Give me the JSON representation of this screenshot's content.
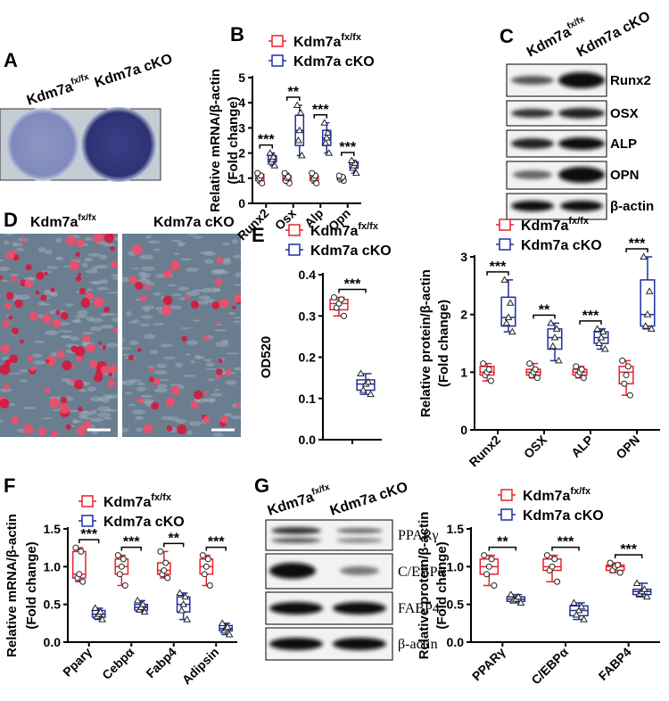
{
  "panels": {
    "A": {
      "label": "A",
      "columns": [
        {
          "name": "Kdm7a",
          "superscript": "fx/fx"
        },
        {
          "name": "Kdm7a cKO"
        }
      ]
    },
    "C": {
      "label": "C",
      "columns": [
        {
          "name": "Kdm7a",
          "superscript": "fx/fx"
        },
        {
          "name": "Kdm7a cKO"
        }
      ],
      "rows": [
        "Runx2",
        "OSX",
        "ALP",
        "OPN",
        "β-actin"
      ]
    },
    "D": {
      "label": "D",
      "columns": [
        {
          "name": "Kdm7a",
          "superscript": "fx/fx"
        },
        {
          "name": "Kdm7a cKO"
        }
      ]
    },
    "G": {
      "label": "G",
      "columns": [
        {
          "name": "Kdm7a",
          "superscript": "fx/fx"
        },
        {
          "name": "Kdm7a cKO"
        }
      ],
      "rows": [
        "PPARγ",
        "C/EBPα",
        "FABP4",
        "β-actin"
      ]
    }
  },
  "chart_data": [
    {
      "type": "box",
      "label": "B",
      "ylabel": [
        "Relative mRNA/β-actin",
        "(Fold change)"
      ],
      "categories": [
        "Runx2",
        "Osx",
        "Alp",
        "Opn"
      ],
      "ylim": [
        0,
        5
      ],
      "yticks": [
        0,
        1,
        2,
        3,
        4,
        5
      ],
      "significance": [
        "***",
        "**",
        "***",
        "***"
      ],
      "series": [
        {
          "name": "Kdm7a",
          "name_superscript": "fx/fx",
          "color": "#e8212b",
          "marker": "circle",
          "min": [
            0.8,
            0.8,
            0.8,
            0.9
          ],
          "q1": [
            0.9,
            0.9,
            0.9,
            0.95
          ],
          "median": [
            1.0,
            1.0,
            1.0,
            1.0
          ],
          "q3": [
            1.15,
            1.1,
            1.1,
            1.05
          ],
          "max": [
            1.2,
            1.2,
            1.2,
            1.1
          ],
          "points": [
            [
              0.8,
              0.95,
              1.0,
              1.1,
              1.2
            ],
            [
              0.8,
              0.9,
              1.0,
              1.05,
              1.2
            ],
            [
              0.8,
              0.95,
              1.0,
              1.1,
              1.2
            ],
            [
              0.9,
              0.95,
              1.0,
              1.05,
              1.1
            ]
          ]
        },
        {
          "name": "Kdm7a cKO",
          "color": "#1f2fa0",
          "marker": "triangle",
          "min": [
            1.5,
            1.9,
            2.0,
            1.2
          ],
          "q1": [
            1.65,
            2.3,
            2.3,
            1.4
          ],
          "median": [
            1.75,
            2.9,
            2.6,
            1.55
          ],
          "q3": [
            1.9,
            3.5,
            2.9,
            1.65
          ],
          "max": [
            2.0,
            3.9,
            3.2,
            1.7
          ],
          "points": [
            [
              1.5,
              1.65,
              1.75,
              1.85,
              2.0
            ],
            [
              1.9,
              2.5,
              2.9,
              3.6,
              3.9
            ],
            [
              2.0,
              2.4,
              2.6,
              2.8,
              3.2
            ],
            [
              1.2,
              1.4,
              1.5,
              1.6,
              1.7
            ]
          ]
        }
      ]
    },
    {
      "type": "box",
      "label": "E",
      "ylabel": [
        "OD520"
      ],
      "categories": [
        null
      ],
      "ylim": [
        0,
        0.4
      ],
      "yticks": [
        {
          "value": 0,
          "label": "0.0"
        },
        0.1,
        0.2,
        0.3,
        0.4
      ],
      "significance": [
        "***"
      ],
      "series": [
        {
          "name": "Kdm7a",
          "name_superscript": "fx/fx",
          "color": "#e8212b",
          "marker": "circle",
          "min": [
            0.3
          ],
          "q1": [
            0.315
          ],
          "median": [
            0.33
          ],
          "q3": [
            0.34
          ],
          "max": [
            0.345
          ],
          "points": [
            [
              0.3,
              0.32,
              0.33,
              0.34,
              0.345
            ]
          ]
        },
        {
          "name": "Kdm7a cKO",
          "color": "#1f2fa0",
          "marker": "triangle",
          "min": [
            0.11
          ],
          "q1": [
            0.12
          ],
          "median": [
            0.135
          ],
          "q3": [
            0.145
          ],
          "max": [
            0.16
          ],
          "points": [
            [
              0.11,
              0.12,
              0.135,
              0.14,
              0.16
            ]
          ]
        }
      ]
    },
    {
      "type": "box",
      "ylabel": [
        "Relative protein/β-actin",
        "(Fold change)"
      ],
      "categories": [
        "Runx2",
        "OSX",
        "ALP",
        "OPN"
      ],
      "ylim": [
        0,
        3
      ],
      "yticks": [
        0,
        1,
        2,
        3
      ],
      "significance": [
        "***",
        "**",
        "***",
        "***"
      ],
      "series": [
        {
          "name": "Kdm7a",
          "name_superscript": "fx/fx",
          "color": "#e8212b",
          "marker": "circle",
          "min": [
            0.85,
            0.9,
            0.9,
            0.6
          ],
          "q1": [
            0.95,
            0.95,
            0.95,
            0.8
          ],
          "median": [
            1.0,
            1.0,
            1.0,
            1.0
          ],
          "q3": [
            1.1,
            1.05,
            1.05,
            1.1
          ],
          "max": [
            1.15,
            1.15,
            1.1,
            1.2
          ],
          "points": [
            [
              0.85,
              0.95,
              1.0,
              1.05,
              1.15
            ],
            [
              0.9,
              0.95,
              1.0,
              1.05,
              1.15
            ],
            [
              0.9,
              0.95,
              1.0,
              1.05,
              1.1
            ],
            [
              0.6,
              0.8,
              0.95,
              1.1,
              1.2
            ]
          ]
        },
        {
          "name": "Kdm7a cKO",
          "color": "#1f2fa0",
          "marker": "triangle",
          "min": [
            1.7,
            1.2,
            1.4,
            1.75
          ],
          "q1": [
            1.8,
            1.4,
            1.5,
            1.8
          ],
          "median": [
            1.95,
            1.6,
            1.6,
            2.0
          ],
          "q3": [
            2.3,
            1.75,
            1.7,
            2.6
          ],
          "max": [
            2.6,
            1.85,
            1.75,
            3.0
          ],
          "points": [
            [
              1.7,
              1.85,
              1.95,
              2.2,
              2.6
            ],
            [
              1.2,
              1.45,
              1.6,
              1.75,
              1.85
            ],
            [
              1.4,
              1.5,
              1.6,
              1.7,
              1.75
            ],
            [
              1.75,
              1.8,
              2.0,
              2.4,
              3.0
            ]
          ]
        }
      ]
    },
    {
      "type": "box",
      "label": "F",
      "ylabel": [
        "Relative mRNA/β-actin",
        "(Fold change)"
      ],
      "categories": [
        "Pparγ",
        "Cebpα",
        "Fabp4",
        "Adipsin"
      ],
      "ylim": [
        0,
        1.5
      ],
      "yticks": [
        {
          "value": 0,
          "label": "0.0"
        },
        0.5,
        {
          "value": 1,
          "label": "1.0"
        },
        1.5
      ],
      "significance": [
        "***",
        "***",
        "**",
        "***"
      ],
      "series": [
        {
          "name": "Kdm7a",
          "name_superscript": "fx/fx",
          "color": "#e8212b",
          "marker": "circle",
          "min": [
            0.8,
            0.75,
            0.85,
            0.75
          ],
          "q1": [
            0.85,
            0.9,
            0.9,
            0.9
          ],
          "median": [
            0.9,
            1.0,
            0.95,
            1.0
          ],
          "q3": [
            1.2,
            1.1,
            1.05,
            1.1
          ],
          "max": [
            1.25,
            1.15,
            1.2,
            1.15
          ],
          "points": [
            [
              0.8,
              0.85,
              0.9,
              1.2,
              1.25
            ],
            [
              0.75,
              0.9,
              1.0,
              1.1,
              1.15
            ],
            [
              0.85,
              0.9,
              0.95,
              1.05,
              1.2
            ],
            [
              0.75,
              0.9,
              1.0,
              1.1,
              1.15
            ]
          ]
        },
        {
          "name": "Kdm7a cKO",
          "color": "#1f2fa0",
          "marker": "triangle",
          "min": [
            0.3,
            0.4,
            0.3,
            0.1
          ],
          "q1": [
            0.33,
            0.42,
            0.4,
            0.15
          ],
          "median": [
            0.37,
            0.46,
            0.5,
            0.18
          ],
          "q3": [
            0.42,
            0.5,
            0.6,
            0.22
          ],
          "max": [
            0.45,
            0.55,
            0.65,
            0.25
          ],
          "points": [
            [
              0.3,
              0.34,
              0.37,
              0.4,
              0.45
            ],
            [
              0.4,
              0.43,
              0.46,
              0.5,
              0.55
            ],
            [
              0.3,
              0.42,
              0.5,
              0.6,
              0.65
            ],
            [
              0.1,
              0.15,
              0.18,
              0.2,
              0.25
            ]
          ]
        }
      ]
    },
    {
      "type": "box",
      "ylabel": [
        "Relative protein/β-actin",
        "(Fold change)"
      ],
      "categories": [
        "PPARγ",
        "C/EBPα",
        "FABP4"
      ],
      "ylim": [
        0,
        1.5
      ],
      "yticks": [
        {
          "value": 0,
          "label": "0.0"
        },
        0.5,
        {
          "value": 1,
          "label": "1.0"
        },
        1.5
      ],
      "significance": [
        "**",
        "***",
        "***"
      ],
      "series": [
        {
          "name": "Kdm7a",
          "name_superscript": "fx/fx",
          "color": "#e8212b",
          "marker": "circle",
          "min": [
            0.75,
            0.8,
            0.92
          ],
          "q1": [
            0.9,
            0.95,
            0.95
          ],
          "median": [
            1.0,
            1.0,
            1.0
          ],
          "q3": [
            1.1,
            1.1,
            1.02
          ],
          "max": [
            1.15,
            1.15,
            1.05
          ],
          "points": [
            [
              0.75,
              0.9,
              1.0,
              1.1,
              1.15
            ],
            [
              0.8,
              0.95,
              1.0,
              1.1,
              1.15
            ],
            [
              0.92,
              0.95,
              1.0,
              1.02,
              1.05
            ]
          ]
        },
        {
          "name": "Kdm7a cKO",
          "color": "#1f2fa0",
          "marker": "triangle",
          "min": [
            0.52,
            0.3,
            0.6
          ],
          "q1": [
            0.54,
            0.35,
            0.63
          ],
          "median": [
            0.57,
            0.42,
            0.67
          ],
          "q3": [
            0.6,
            0.48,
            0.7
          ],
          "max": [
            0.63,
            0.52,
            0.78
          ],
          "points": [
            [
              0.52,
              0.55,
              0.57,
              0.6,
              0.63
            ],
            [
              0.3,
              0.36,
              0.42,
              0.47,
              0.52
            ],
            [
              0.6,
              0.64,
              0.67,
              0.7,
              0.78
            ]
          ]
        }
      ]
    }
  ]
}
